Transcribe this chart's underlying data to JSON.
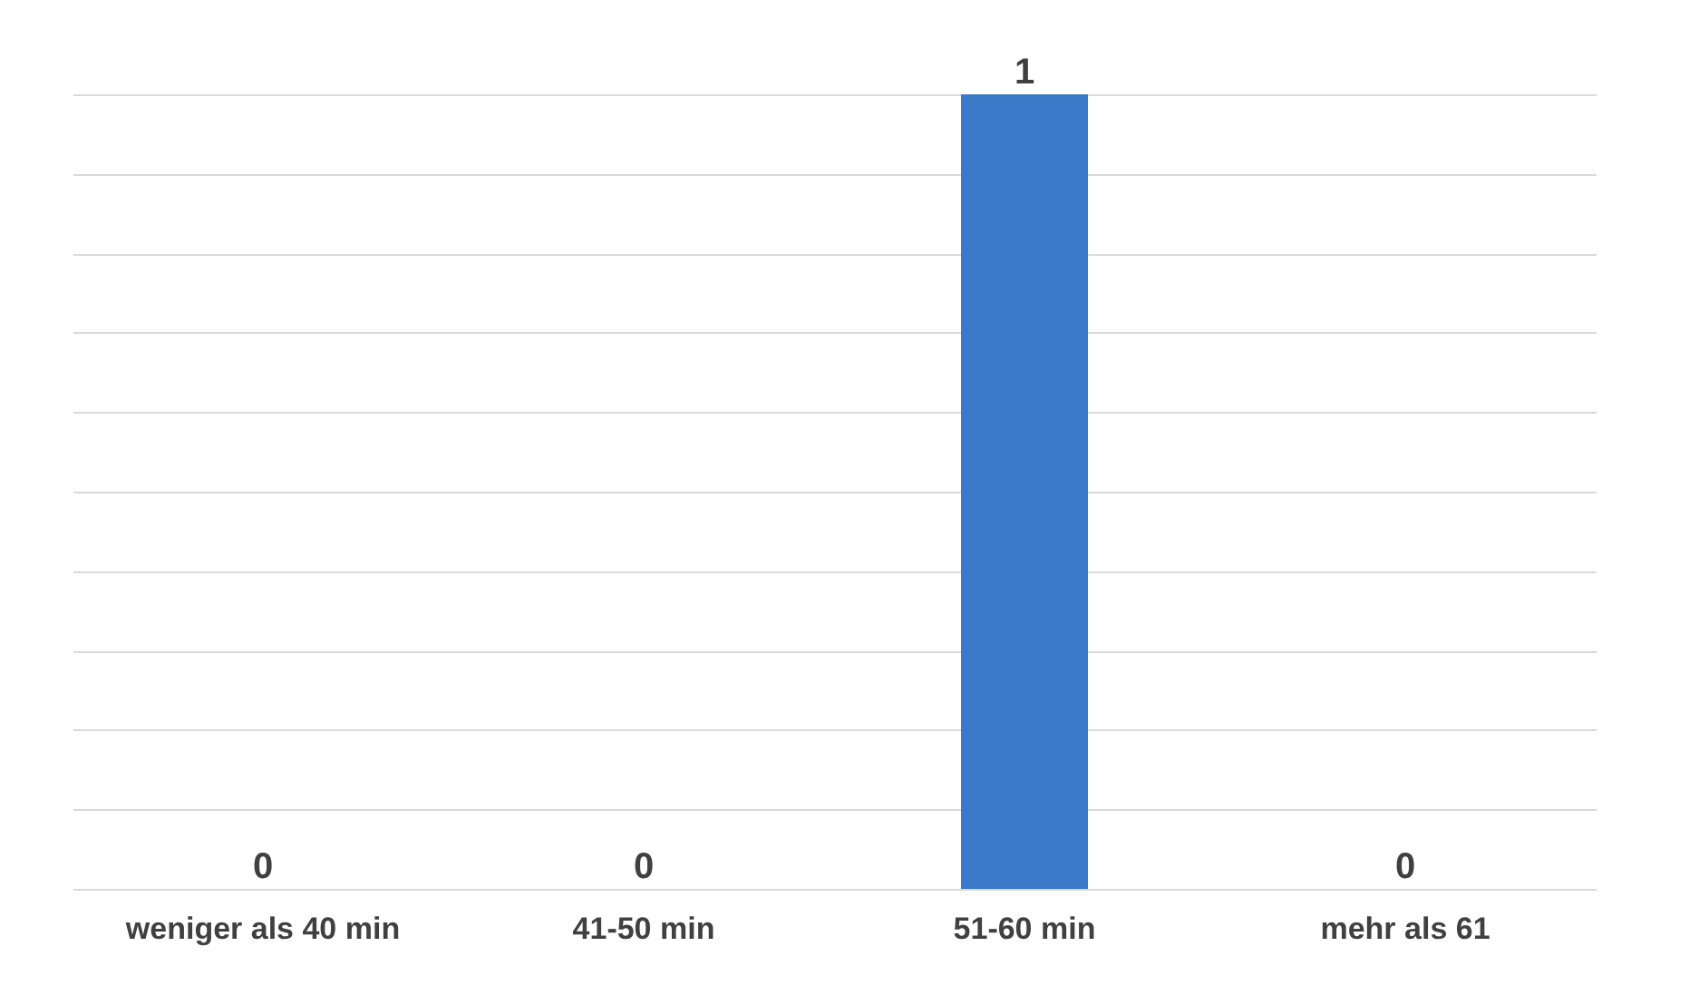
{
  "chart_data": {
    "type": "bar",
    "categories": [
      "weniger als 40 min",
      "41-50 min",
      "51-60 min",
      "mehr als 61"
    ],
    "values": [
      0,
      0,
      1,
      0
    ],
    "colors": [
      "#1f3864",
      "#1f3864",
      "#3a78c8",
      "#1f3864"
    ],
    "grid": "y",
    "tick_labels": "x",
    "data_labels": true
  }
}
